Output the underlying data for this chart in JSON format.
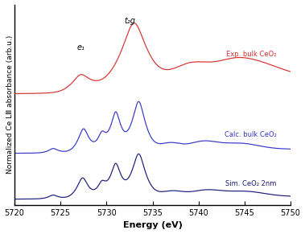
{
  "x_min": 5720,
  "x_max": 5750,
  "xlabel": "Energy (eV)",
  "ylabel": "Normalized Ce LⅢ absorbance (arb.u.)",
  "xticks": [
    5720,
    5725,
    5730,
    5735,
    5740,
    5745,
    5750
  ],
  "annotation_e1": "e₁",
  "annotation_t2g": "t₂g",
  "label_exp": "Exp. bulk CeO₂",
  "label_calc": "Calc. bulk CeO₂",
  "label_sim": "Sim. CeO₂ 2nm",
  "color_exp": "#d93030",
  "color_calc": "#3535c8",
  "color_sim": "#1a1a7a",
  "bg_color": "#ffffff",
  "axis_fontsize": 8,
  "tick_fontsize": 7,
  "legend_fontsize": 6,
  "ylabel_fontsize": 6.5,
  "annot_fontsize": 7
}
